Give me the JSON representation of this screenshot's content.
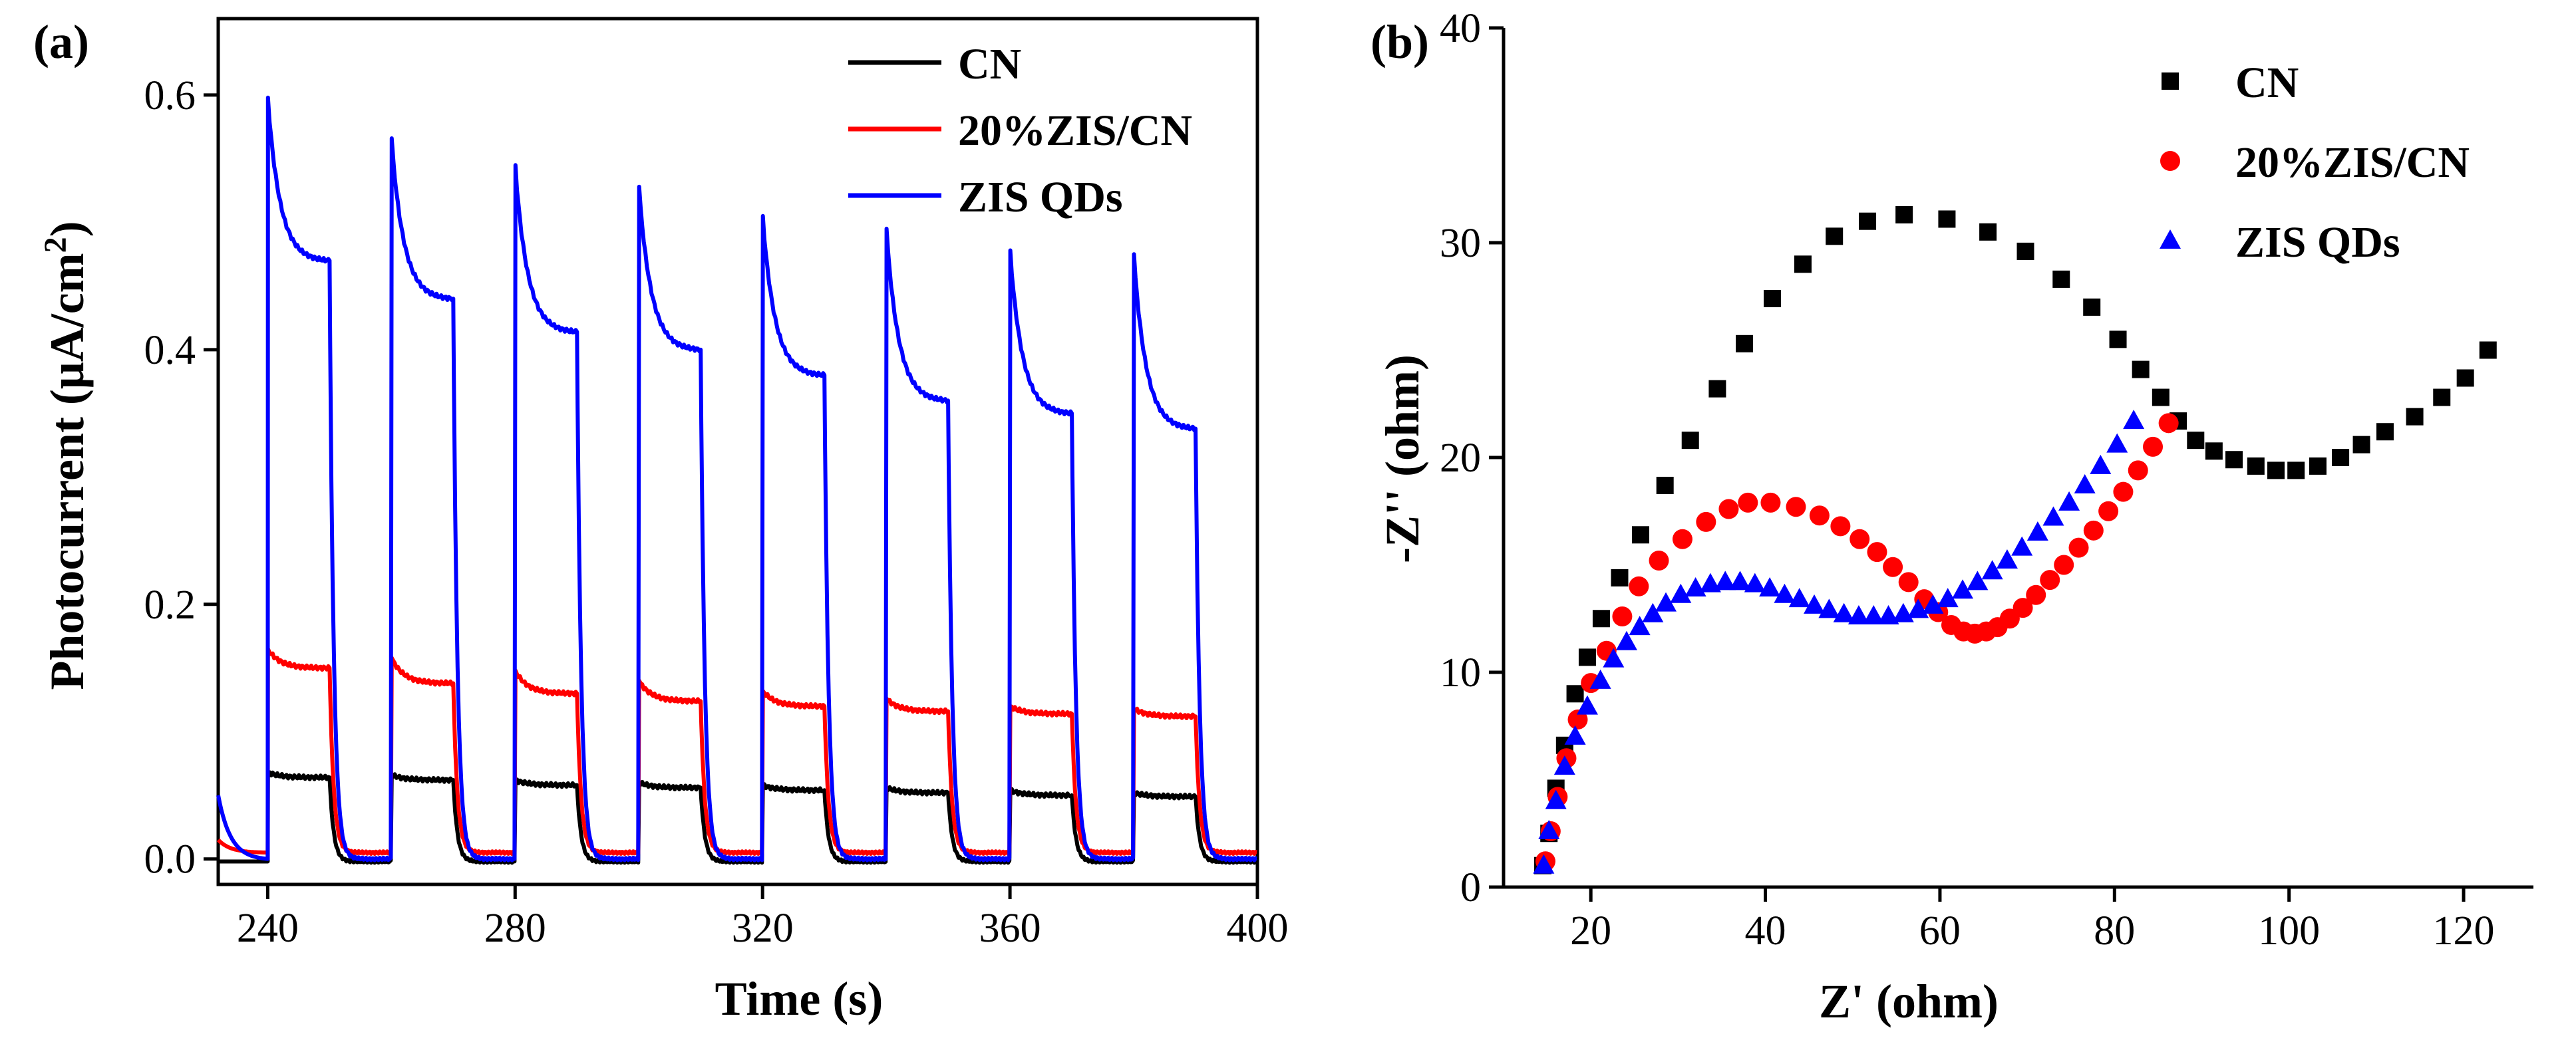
{
  "chart_data": [
    {
      "type": "line",
      "panel_label": "(a)",
      "xlabel": "Time (s)",
      "ylabel": "Photocurrent (μA/cm²)",
      "ylabel_main": "Photocurrent (μA/cm",
      "ylabel_sup": "2",
      "ylabel_close": ")",
      "xlim": [
        232,
        400
      ],
      "ylim": [
        -0.02,
        0.66
      ],
      "xticks": [
        240,
        280,
        320,
        360,
        400
      ],
      "yticks": [
        0.0,
        0.2,
        0.4,
        0.6
      ],
      "ytick_labels": [
        "0.0",
        "0.2",
        "0.4",
        "0.6"
      ],
      "legend_position": "top-right",
      "cycle": {
        "first_on": 240,
        "period": 20,
        "on_duration": 10,
        "cycles": 8,
        "x_start": 232,
        "x_end": 400
      },
      "series": [
        {
          "name": "CN",
          "color": "#000000",
          "baseline": -0.002,
          "peaks": [
            0.068,
            0.066,
            0.062,
            0.06,
            0.058,
            0.056,
            0.054,
            0.052
          ],
          "ends": [
            0.064,
            0.062,
            0.058,
            0.056,
            0.054,
            0.052,
            0.05,
            0.049
          ],
          "steady_fraction": 0.9
        },
        {
          "name": "20%ZIS/CN",
          "color": "#ff0000",
          "baseline": 0.005,
          "start_value": 0.015,
          "peaks": [
            0.165,
            0.158,
            0.148,
            0.14,
            0.132,
            0.126,
            0.12,
            0.118
          ],
          "ends": [
            0.15,
            0.138,
            0.13,
            0.124,
            0.12,
            0.116,
            0.114,
            0.112
          ],
          "steady_fraction": 0.6
        },
        {
          "name": "ZIS QDs",
          "color": "#0000ff",
          "baseline": 0.0,
          "start_value": 0.05,
          "peaks": [
            0.598,
            0.566,
            0.545,
            0.528,
            0.505,
            0.495,
            0.478,
            0.475
          ],
          "ends": [
            0.47,
            0.44,
            0.414,
            0.4,
            0.38,
            0.36,
            0.35,
            0.338
          ],
          "steady_fraction": 0.6
        }
      ]
    },
    {
      "type": "scatter",
      "panel_label": "(b)",
      "xlabel": "Z' (ohm)",
      "ylabel": "-Z'' (ohm)",
      "xlim": [
        10,
        128
      ],
      "ylim": [
        0,
        40
      ],
      "xticks": [
        20,
        40,
        60,
        80,
        100,
        120
      ],
      "yticks": [
        0,
        10,
        20,
        30,
        40
      ],
      "legend_position": "top-right",
      "series": [
        {
          "name": "CN",
          "marker": "square",
          "color": "#000000",
          "x": [
            14.5,
            15.2,
            16.0,
            17.0,
            18.2,
            19.6,
            21.2,
            23.3,
            25.7,
            28.5,
            31.4,
            34.5,
            37.6,
            40.8,
            44.3,
            47.9,
            51.7,
            55.9,
            60.8,
            65.5,
            69.8,
            73.9,
            77.4,
            80.4,
            83.0,
            85.3,
            87.3,
            89.3,
            91.4,
            93.7,
            96.2,
            98.5,
            100.8,
            103.3,
            105.9,
            108.3,
            111.0,
            114.4,
            117.5,
            120.2,
            122.8
          ],
          "y": [
            1.0,
            2.5,
            4.6,
            6.6,
            9.0,
            10.7,
            12.5,
            14.4,
            16.4,
            18.7,
            20.8,
            23.2,
            25.3,
            27.4,
            29.0,
            30.3,
            31.0,
            31.3,
            31.1,
            30.5,
            29.6,
            28.3,
            27.0,
            25.5,
            24.1,
            22.8,
            21.7,
            20.8,
            20.3,
            19.9,
            19.6,
            19.4,
            19.4,
            19.6,
            20.0,
            20.6,
            21.2,
            21.9,
            22.8,
            23.7,
            25.0
          ]
        },
        {
          "name": "20%ZIS/CN",
          "marker": "circle",
          "color": "#ff0000",
          "x": [
            14.8,
            15.4,
            16.2,
            17.2,
            18.5,
            20.0,
            21.8,
            23.6,
            25.5,
            27.8,
            30.5,
            33.2,
            35.8,
            38.0,
            40.6,
            43.5,
            46.2,
            48.6,
            50.8,
            52.8,
            54.6,
            56.4,
            58.2,
            59.8,
            61.3,
            62.7,
            64.0,
            65.3,
            66.6,
            68.0,
            69.5,
            71.0,
            72.6,
            74.2,
            75.9,
            77.6,
            79.3,
            81.0,
            82.7,
            84.4,
            86.2
          ],
          "y": [
            1.2,
            2.6,
            4.2,
            6.0,
            7.8,
            9.5,
            11.0,
            12.6,
            14.0,
            15.2,
            16.2,
            17.0,
            17.6,
            17.9,
            17.9,
            17.7,
            17.3,
            16.8,
            16.2,
            15.6,
            14.9,
            14.2,
            13.4,
            12.8,
            12.2,
            11.9,
            11.8,
            11.9,
            12.1,
            12.5,
            13.0,
            13.6,
            14.3,
            15.0,
            15.8,
            16.6,
            17.5,
            18.4,
            19.4,
            20.5,
            21.6
          ]
        },
        {
          "name": "ZIS QDs",
          "marker": "triangle",
          "color": "#0000ff",
          "x": [
            14.6,
            15.2,
            16.0,
            17.0,
            18.2,
            19.6,
            21.1,
            22.6,
            24.1,
            25.6,
            27.1,
            28.6,
            30.3,
            32.0,
            33.7,
            35.4,
            37.1,
            38.8,
            40.5,
            42.2,
            43.9,
            45.6,
            47.3,
            49.0,
            50.7,
            52.4,
            54.1,
            55.8,
            57.5,
            59.2,
            60.9,
            62.6,
            64.3,
            66.0,
            67.7,
            69.4,
            71.2,
            73.0,
            74.8,
            76.6,
            78.4,
            80.3,
            82.2
          ],
          "y": [
            1.0,
            2.6,
            4.0,
            5.6,
            7.0,
            8.4,
            9.6,
            10.6,
            11.4,
            12.1,
            12.7,
            13.2,
            13.6,
            13.9,
            14.1,
            14.2,
            14.2,
            14.1,
            13.9,
            13.6,
            13.4,
            13.1,
            12.9,
            12.7,
            12.6,
            12.6,
            12.6,
            12.7,
            12.9,
            13.1,
            13.4,
            13.8,
            14.2,
            14.7,
            15.2,
            15.8,
            16.5,
            17.2,
            17.9,
            18.7,
            19.6,
            20.6,
            21.7
          ]
        }
      ]
    }
  ]
}
